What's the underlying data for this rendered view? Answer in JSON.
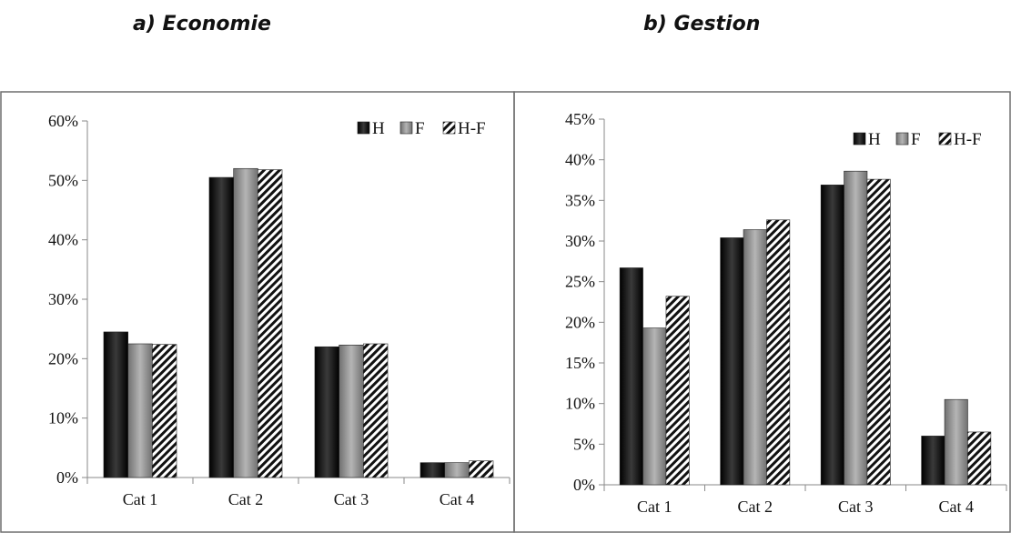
{
  "titles": {
    "a": "a) Economie",
    "b": "b) Gestion"
  },
  "chart_data": [
    {
      "type": "bar",
      "title": "a) Economie",
      "categories": [
        "Cat 1",
        "Cat 2",
        "Cat 3",
        "Cat 4"
      ],
      "series": [
        {
          "name": "H",
          "values": [
            24.5,
            50.5,
            22.0,
            2.5
          ]
        },
        {
          "name": "F",
          "values": [
            22.5,
            52.0,
            22.3,
            2.5
          ]
        },
        {
          "name": "H-F",
          "values": [
            22.4,
            51.8,
            22.5,
            2.8
          ]
        }
      ],
      "ylim": [
        0,
        60
      ],
      "yticks": [
        0,
        10,
        20,
        30,
        40,
        50,
        60
      ],
      "ytick_format": "%",
      "legend": "top-right",
      "grid": false
    },
    {
      "type": "bar",
      "title": "b) Gestion",
      "categories": [
        "Cat 1",
        "Cat 2",
        "Cat 3",
        "Cat 4"
      ],
      "series": [
        {
          "name": "H",
          "values": [
            26.7,
            30.4,
            36.9,
            6.0
          ]
        },
        {
          "name": "F",
          "values": [
            19.3,
            31.4,
            38.6,
            10.5
          ]
        },
        {
          "name": "H-F",
          "values": [
            23.2,
            32.6,
            37.6,
            6.5
          ]
        }
      ],
      "ylim": [
        0,
        45
      ],
      "yticks": [
        0,
        5,
        10,
        15,
        20,
        25,
        30,
        35,
        40,
        45
      ],
      "ytick_format": "%",
      "legend": "top-right",
      "grid": false
    }
  ],
  "colors": {
    "H": "#111111",
    "F": "#8c8c8c",
    "H-F": "hatch-black-white",
    "border": "#6f6f6f",
    "axis": "#8a8a8a"
  }
}
